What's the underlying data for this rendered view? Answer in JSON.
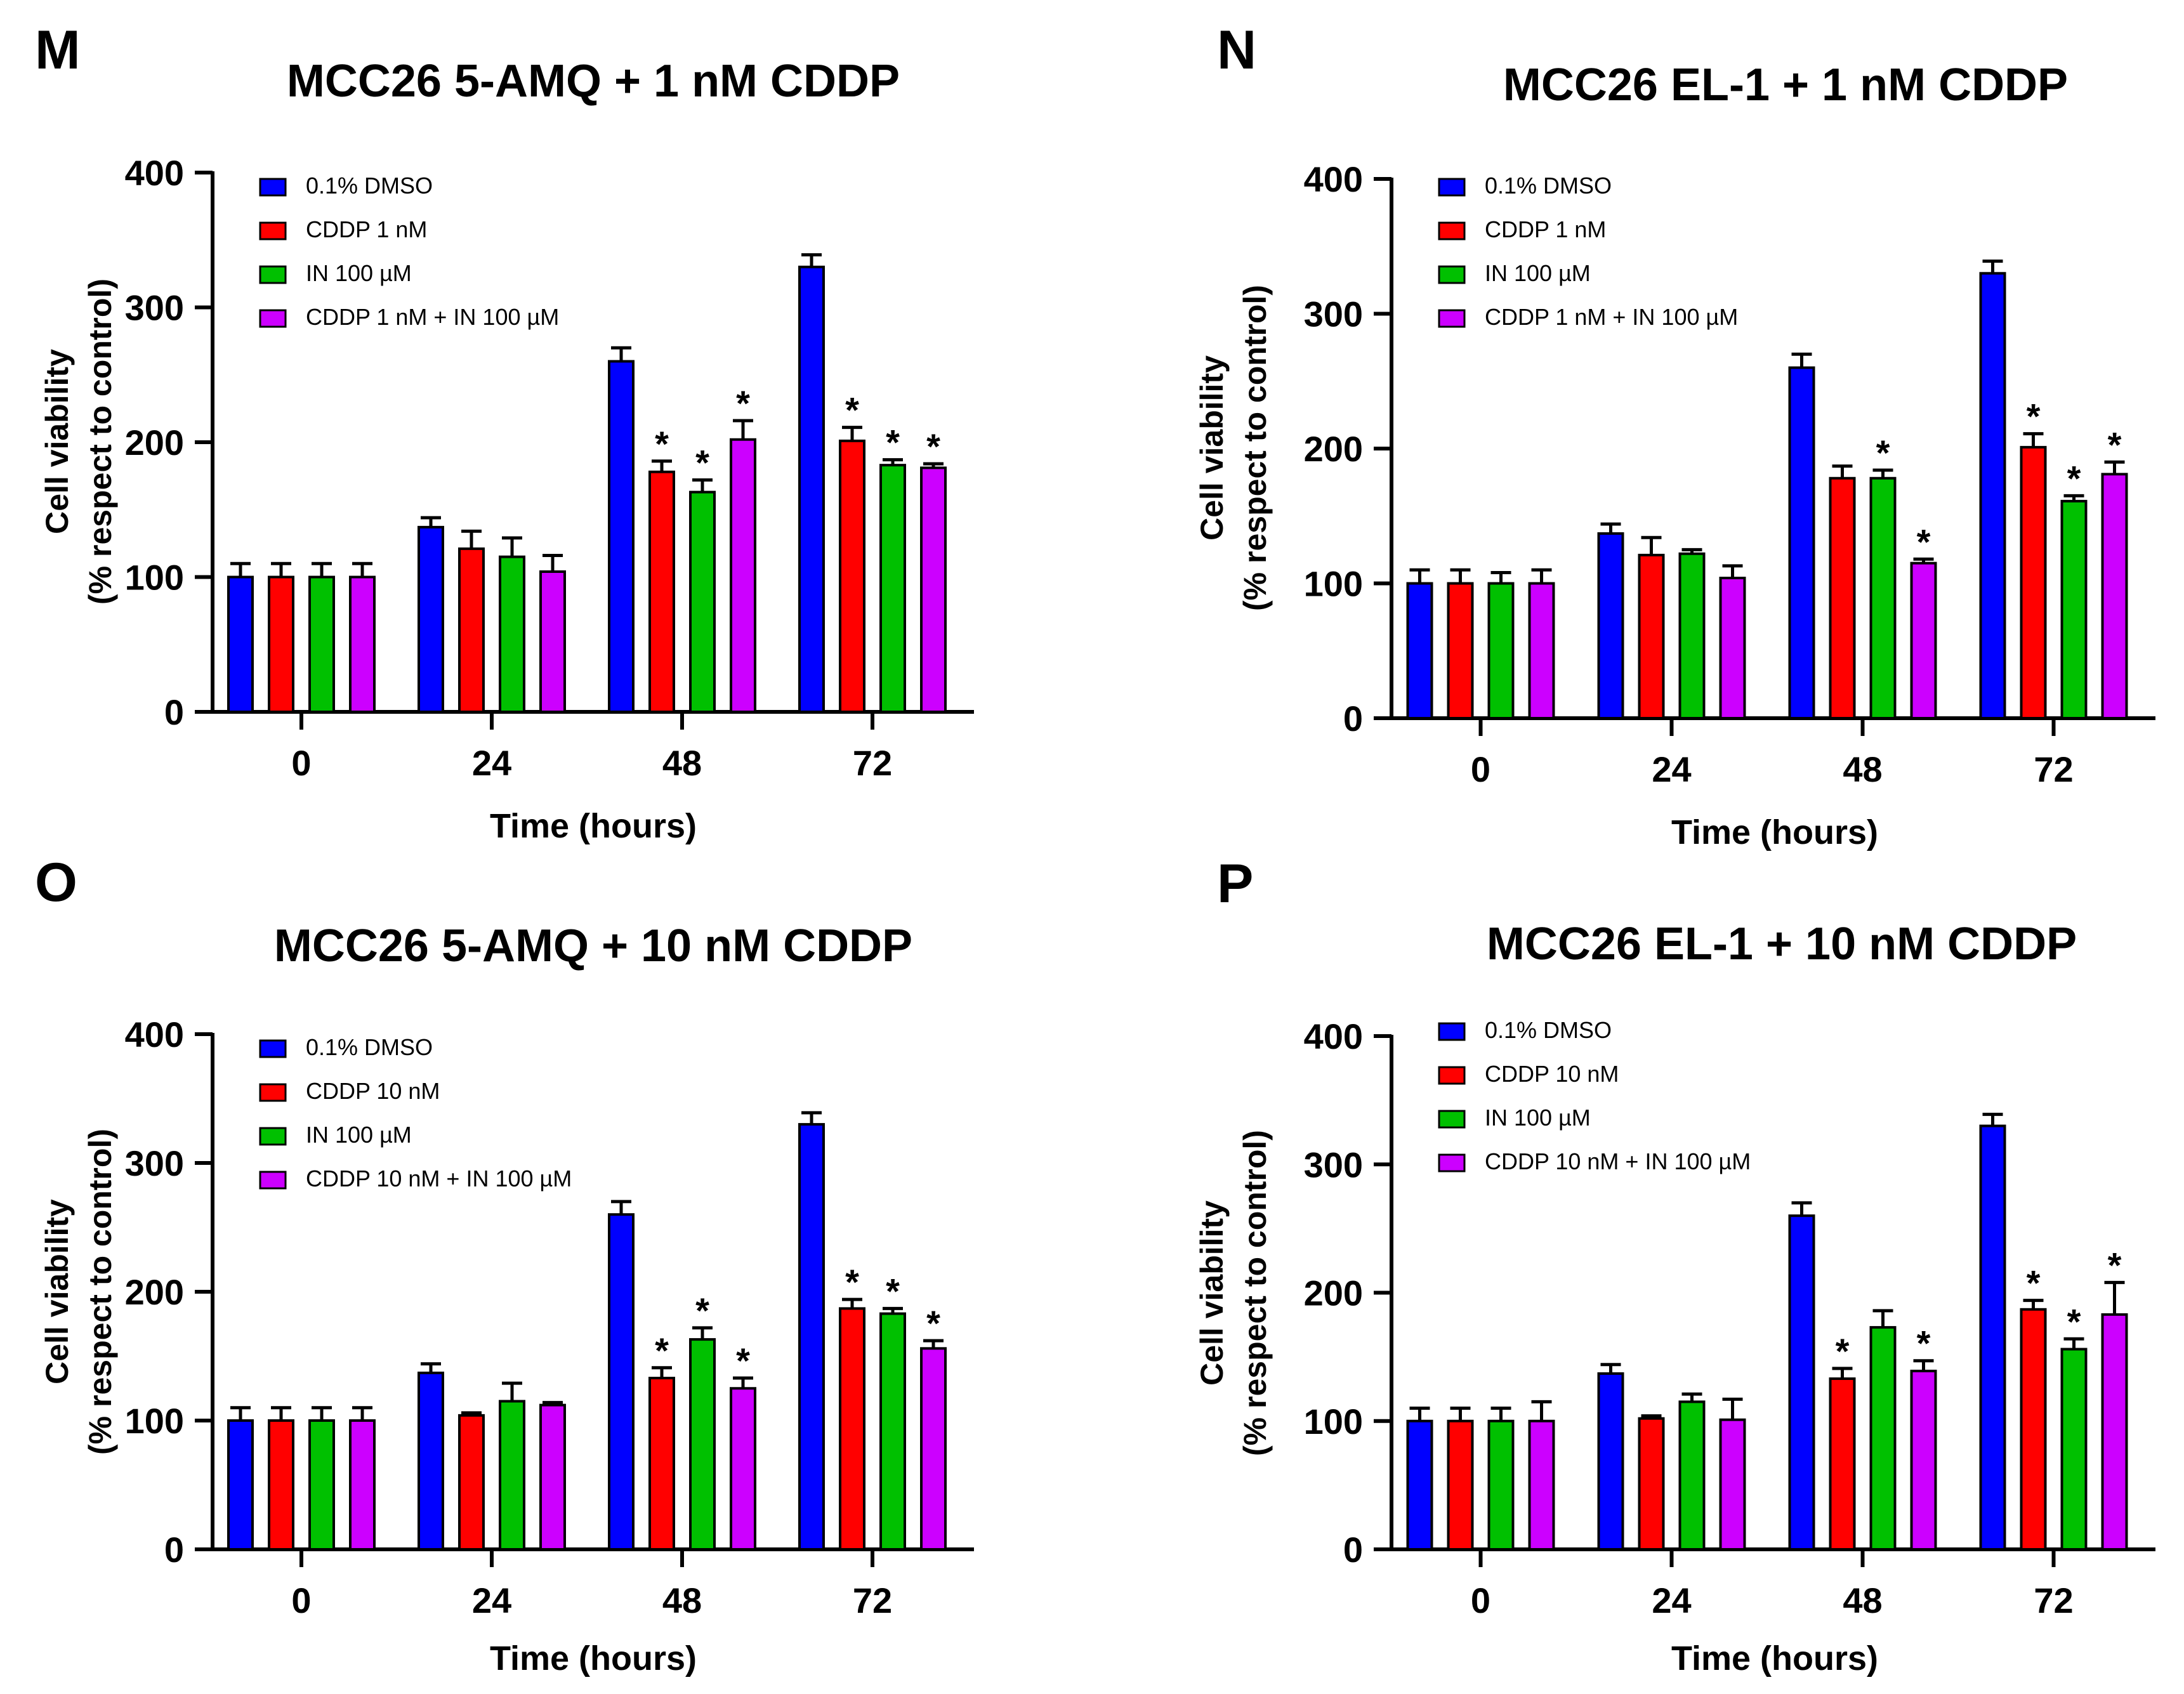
{
  "colors": {
    "dmso": "#0000ff",
    "cddp": "#ff0000",
    "in": "#00c000",
    "combo": "#cc00ff",
    "ink": "#000000"
  },
  "chart_data": [
    {
      "panel": "M",
      "type": "bar",
      "title": "MCC26 5-AMQ + 1 nM CDDP",
      "xlabel": "Time (hours)",
      "ylabel": [
        "Cell viability",
        "(% respect to control)"
      ],
      "ylim": [
        0,
        400
      ],
      "yticks": [
        0,
        100,
        200,
        300,
        400
      ],
      "categories": [
        "0",
        "24",
        "48",
        "72"
      ],
      "legend_position": "top-left",
      "series": [
        {
          "name": "0.1%  DMSO",
          "color_key": "dmso",
          "values": [
            100,
            137,
            260,
            330
          ],
          "errors": [
            10,
            7,
            10,
            9
          ],
          "significant": [
            false,
            false,
            false,
            false
          ]
        },
        {
          "name": "CDDP 1 nM",
          "color_key": "cddp",
          "values": [
            100,
            121,
            178,
            201
          ],
          "errors": [
            10,
            13,
            8,
            10
          ],
          "significant": [
            false,
            false,
            true,
            true
          ]
        },
        {
          "name": "IN 100 µM",
          "color_key": "in",
          "values": [
            100,
            115,
            163,
            183
          ],
          "errors": [
            10,
            14,
            9,
            4
          ],
          "significant": [
            false,
            false,
            true,
            true
          ]
        },
        {
          "name": "CDDP 1 nM + IN 100 µM",
          "color_key": "combo",
          "values": [
            100,
            104,
            202,
            181
          ],
          "errors": [
            10,
            12,
            14,
            3
          ],
          "significant": [
            false,
            false,
            true,
            true
          ]
        }
      ]
    },
    {
      "panel": "N",
      "type": "bar",
      "title": "MCC26 EL-1 + 1 nM CDDP",
      "xlabel": "Time (hours)",
      "ylabel": [
        "Cell viability",
        "(% respect to control)"
      ],
      "ylim": [
        0,
        400
      ],
      "yticks": [
        0,
        100,
        200,
        300,
        400
      ],
      "categories": [
        "0",
        "24",
        "48",
        "72"
      ],
      "legend_position": "top-left",
      "series": [
        {
          "name": "0.1%  DMSO",
          "color_key": "dmso",
          "values": [
            100,
            137,
            260,
            330
          ],
          "errors": [
            10,
            7,
            10,
            9
          ],
          "significant": [
            false,
            false,
            false,
            false
          ]
        },
        {
          "name": "CDDP 1 nM",
          "color_key": "cddp",
          "values": [
            100,
            121,
            178,
            201
          ],
          "errors": [
            10,
            13,
            9,
            10
          ],
          "significant": [
            false,
            false,
            false,
            true
          ]
        },
        {
          "name": "IN 100 µM",
          "color_key": "in",
          "values": [
            100,
            122,
            178,
            161
          ],
          "errors": [
            8,
            3,
            6,
            4
          ],
          "significant": [
            false,
            false,
            true,
            true
          ]
        },
        {
          "name": "CDDP 1 nM + IN 100 µM",
          "color_key": "combo",
          "values": [
            100,
            104,
            115,
            181
          ],
          "errors": [
            10,
            9,
            3,
            9
          ],
          "significant": [
            false,
            false,
            true,
            true
          ]
        }
      ]
    },
    {
      "panel": "O",
      "type": "bar",
      "title": "MCC26 5-AMQ + 10 nM CDDP",
      "xlabel": "Time (hours)",
      "ylabel": [
        "Cell viability",
        "(% respect to control)"
      ],
      "ylim": [
        0,
        400
      ],
      "yticks": [
        0,
        100,
        200,
        300,
        400
      ],
      "categories": [
        "0",
        "24",
        "48",
        "72"
      ],
      "legend_position": "top-left",
      "series": [
        {
          "name": "0.1% DMSO",
          "color_key": "dmso",
          "values": [
            100,
            137,
            260,
            330
          ],
          "errors": [
            10,
            7,
            10,
            9
          ],
          "significant": [
            false,
            false,
            false,
            false
          ]
        },
        {
          "name": "CDDP 10 nM",
          "color_key": "cddp",
          "values": [
            100,
            104,
            133,
            187
          ],
          "errors": [
            10,
            2,
            8,
            7
          ],
          "significant": [
            false,
            false,
            true,
            true
          ]
        },
        {
          "name": "IN 100 µM",
          "color_key": "in",
          "values": [
            100,
            115,
            163,
            183
          ],
          "errors": [
            10,
            14,
            9,
            4
          ],
          "significant": [
            false,
            false,
            true,
            true
          ]
        },
        {
          "name": "CDDP 10 nM + IN 100 µM",
          "color_key": "combo",
          "values": [
            100,
            112,
            125,
            156
          ],
          "errors": [
            10,
            2,
            8,
            6
          ],
          "significant": [
            false,
            false,
            true,
            true
          ]
        }
      ]
    },
    {
      "panel": "P",
      "type": "bar",
      "title": "MCC26 EL-1 + 10 nM CDDP",
      "xlabel": "Time (hours)",
      "ylabel": [
        "Cell viability",
        "(% respect to control)"
      ],
      "ylim": [
        0,
        400
      ],
      "yticks": [
        0,
        100,
        200,
        300,
        400
      ],
      "categories": [
        "0",
        "24",
        "48",
        "72"
      ],
      "legend_position": "top-left",
      "series": [
        {
          "name": "0.1% DMSO",
          "color_key": "dmso",
          "values": [
            100,
            137,
            260,
            330
          ],
          "errors": [
            10,
            7,
            10,
            9
          ],
          "significant": [
            false,
            false,
            false,
            false
          ]
        },
        {
          "name": "CDDP 10 nM",
          "color_key": "cddp",
          "values": [
            100,
            102,
            133,
            187
          ],
          "errors": [
            10,
            2,
            8,
            7
          ],
          "significant": [
            false,
            false,
            true,
            true
          ]
        },
        {
          "name": "IN 100 µM",
          "color_key": "in",
          "values": [
            100,
            115,
            173,
            156
          ],
          "errors": [
            10,
            6,
            13,
            8
          ],
          "significant": [
            false,
            false,
            false,
            true
          ]
        },
        {
          "name": "CDDP 10 nM + IN 100 µM",
          "color_key": "combo",
          "values": [
            100,
            101,
            139,
            183
          ],
          "errors": [
            15,
            16,
            8,
            25
          ],
          "significant": [
            false,
            false,
            true,
            true
          ]
        }
      ]
    }
  ]
}
